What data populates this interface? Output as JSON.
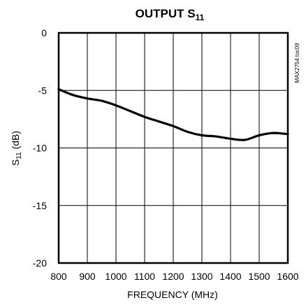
{
  "chart_data": {
    "type": "line",
    "title": "OUTPUT S",
    "title_subscript": "11",
    "xlabel": "FREQUENCY (MHz)",
    "ylabel_main": "S",
    "ylabel_subscript": "11",
    "ylabel_suffix": " (dB)",
    "side_note": "MAX2754 toc09",
    "xlim": [
      800,
      1600
    ],
    "ylim": [
      -20,
      0
    ],
    "x_ticks": [
      "800",
      "900",
      "1000",
      "1100",
      "1200",
      "1300",
      "1400",
      "1500",
      "1600"
    ],
    "y_ticks": [
      "0",
      "-5",
      "-10",
      "-15",
      "-20"
    ],
    "grid": true,
    "series": [
      {
        "x": [
          800,
          850,
          900,
          950,
          1000,
          1050,
          1100,
          1150,
          1200,
          1250,
          1300,
          1350,
          1400,
          1450,
          1500,
          1550,
          1600
        ],
        "y": [
          -4.9,
          -5.4,
          -5.7,
          -5.9,
          -6.3,
          -6.8,
          -7.3,
          -7.7,
          -8.1,
          -8.6,
          -8.9,
          -9.0,
          -9.2,
          -9.3,
          -8.9,
          -8.7,
          -8.8
        ]
      }
    ],
    "line_color": "#000000"
  }
}
